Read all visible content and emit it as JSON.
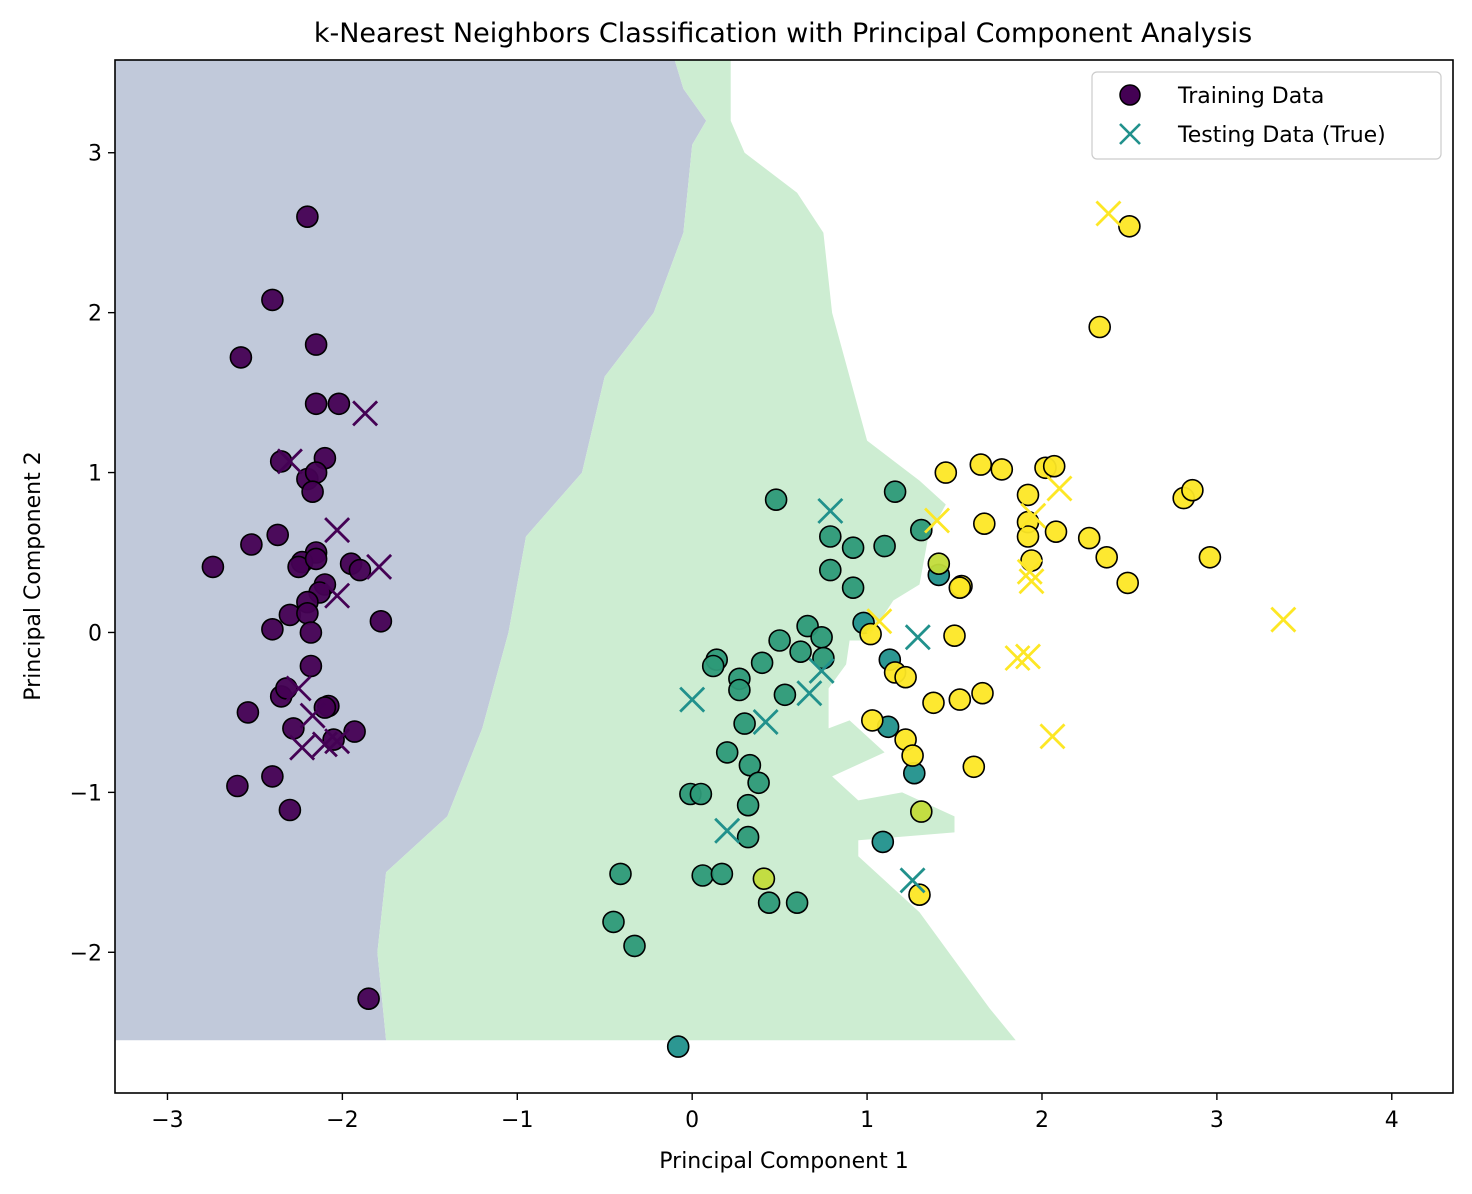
{
  "chart_data": {
    "type": "scatter",
    "title": "k-Nearest Neighbors Classification with Principal Component Analysis",
    "xlabel": "Principal Component 1",
    "ylabel": "Principal Component 2",
    "xlim": [
      -3.3,
      4.35
    ],
    "ylim": [
      -2.88,
      3.58
    ],
    "xticks": [
      -3,
      -2,
      -1,
      0,
      1,
      2,
      3,
      4
    ],
    "yticks": [
      -2,
      -1,
      0,
      1,
      2,
      3
    ],
    "grid": false,
    "legend_position": "top-right",
    "legend": [
      "Training Data",
      "Testing Data (True)"
    ],
    "colors": {
      "class0": "#440154",
      "class1": "#21918c",
      "class1_train": "#2d9a78",
      "class2": "#fde725",
      "class_mid": "#c2dc3a",
      "region0": "#c1c9da",
      "region1": "#cdedd2",
      "region2": "#ffffff"
    },
    "decision_regions": [
      {
        "class": 0,
        "boundary": [
          [
            -3.3,
            3.58
          ],
          [
            -0.1,
            3.58
          ],
          [
            -0.05,
            3.4
          ],
          [
            0.08,
            3.2
          ],
          [
            0.0,
            3.05
          ],
          [
            -0.05,
            2.5
          ],
          [
            -0.22,
            2.0
          ],
          [
            -0.5,
            1.6
          ],
          [
            -0.63,
            1.0
          ],
          [
            -0.95,
            0.6
          ],
          [
            -1.05,
            0.0
          ],
          [
            -1.2,
            -0.6
          ],
          [
            -1.4,
            -1.15
          ],
          [
            -1.75,
            -1.5
          ],
          [
            -1.8,
            -2.0
          ],
          [
            -1.75,
            -2.55
          ],
          [
            -3.3,
            -2.55
          ]
        ]
      },
      {
        "class": 1,
        "boundary": [
          [
            -0.1,
            3.58
          ],
          [
            0.22,
            3.58
          ],
          [
            0.22,
            3.2
          ],
          [
            0.3,
            3.0
          ],
          [
            0.6,
            2.75
          ],
          [
            0.75,
            2.5
          ],
          [
            0.8,
            2.0
          ],
          [
            0.95,
            1.4
          ],
          [
            1.0,
            1.2
          ],
          [
            1.3,
            0.95
          ],
          [
            1.45,
            0.8
          ],
          [
            1.35,
            0.6
          ],
          [
            1.3,
            0.3
          ],
          [
            1.15,
            0.2
          ],
          [
            1.0,
            -0.05
          ],
          [
            0.9,
            -0.05
          ],
          [
            0.88,
            -0.2
          ],
          [
            0.78,
            -0.35
          ],
          [
            0.78,
            -0.6
          ],
          [
            0.9,
            -0.55
          ],
          [
            1.1,
            -0.75
          ],
          [
            0.8,
            -0.9
          ],
          [
            0.95,
            -1.05
          ],
          [
            1.2,
            -1.0
          ],
          [
            1.5,
            -1.15
          ],
          [
            1.5,
            -1.25
          ],
          [
            0.95,
            -1.3
          ],
          [
            0.95,
            -1.4
          ],
          [
            1.3,
            -1.75
          ],
          [
            1.7,
            -2.35
          ],
          [
            1.85,
            -2.55
          ],
          [
            -1.75,
            -2.55
          ],
          [
            -1.8,
            -2.0
          ],
          [
            -1.75,
            -1.5
          ],
          [
            -1.4,
            -1.15
          ],
          [
            -1.2,
            -0.6
          ],
          [
            -1.05,
            0.0
          ],
          [
            -0.95,
            0.6
          ],
          [
            -0.63,
            1.0
          ],
          [
            -0.5,
            1.6
          ],
          [
            -0.22,
            2.0
          ],
          [
            -0.05,
            2.5
          ],
          [
            0.0,
            3.05
          ],
          [
            0.08,
            3.2
          ],
          [
            -0.05,
            3.4
          ]
        ]
      }
    ],
    "series": [
      {
        "name": "Training Data",
        "marker": "circle",
        "class0": [
          [
            -2.2,
            2.6
          ],
          [
            -2.4,
            2.08
          ],
          [
            -2.58,
            1.72
          ],
          [
            -2.15,
            1.8
          ],
          [
            -2.15,
            1.43
          ],
          [
            -2.02,
            1.43
          ],
          [
            -2.35,
            1.07
          ],
          [
            -2.1,
            1.09
          ],
          [
            -2.2,
            0.96
          ],
          [
            -2.15,
            1.0
          ],
          [
            -2.17,
            0.88
          ],
          [
            -2.37,
            0.61
          ],
          [
            -2.52,
            0.55
          ],
          [
            -2.15,
            0.5
          ],
          [
            -2.23,
            0.44
          ],
          [
            -2.25,
            0.41
          ],
          [
            -2.15,
            0.46
          ],
          [
            -2.74,
            0.41
          ],
          [
            -1.95,
            0.43
          ],
          [
            -1.9,
            0.39
          ],
          [
            -2.1,
            0.3
          ],
          [
            -2.13,
            0.25
          ],
          [
            -2.2,
            0.19
          ],
          [
            -2.3,
            0.11
          ],
          [
            -2.2,
            0.12
          ],
          [
            -2.4,
            0.02
          ],
          [
            -2.18,
            0.0
          ],
          [
            -1.78,
            0.07
          ],
          [
            -2.18,
            -0.21
          ],
          [
            -2.35,
            -0.4
          ],
          [
            -2.32,
            -0.35
          ],
          [
            -2.08,
            -0.46
          ],
          [
            -2.1,
            -0.47
          ],
          [
            -2.54,
            -0.5
          ],
          [
            -2.28,
            -0.6
          ],
          [
            -1.93,
            -0.62
          ],
          [
            -2.05,
            -0.67
          ],
          [
            -2.6,
            -0.96
          ],
          [
            -2.4,
            -0.9
          ],
          [
            -2.3,
            -1.11
          ],
          [
            -1.85,
            -2.29
          ]
        ],
        "class1": [
          [
            0.48,
            0.83
          ],
          [
            1.16,
            0.88
          ],
          [
            0.79,
            0.6
          ],
          [
            0.92,
            0.53
          ],
          [
            1.1,
            0.54
          ],
          [
            1.31,
            0.64
          ],
          [
            0.79,
            0.39
          ],
          [
            0.92,
            0.28
          ],
          [
            0.66,
            0.04
          ],
          [
            0.74,
            -0.03
          ],
          [
            0.5,
            -0.05
          ],
          [
            0.62,
            -0.12
          ],
          [
            0.75,
            -0.16
          ],
          [
            0.14,
            -0.17
          ],
          [
            0.12,
            -0.21
          ],
          [
            0.4,
            -0.19
          ],
          [
            0.27,
            -0.29
          ],
          [
            0.27,
            -0.36
          ],
          [
            0.53,
            -0.39
          ],
          [
            0.3,
            -0.57
          ],
          [
            0.2,
            -0.75
          ],
          [
            0.33,
            -0.83
          ],
          [
            0.38,
            -0.94
          ],
          [
            0.32,
            -1.08
          ],
          [
            -0.01,
            -1.01
          ],
          [
            0.05,
            -1.01
          ],
          [
            0.32,
            -1.28
          ],
          [
            -0.41,
            -1.51
          ],
          [
            0.06,
            -1.52
          ],
          [
            0.17,
            -1.51
          ],
          [
            0.44,
            -1.69
          ],
          [
            0.6,
            -1.69
          ],
          [
            -0.45,
            -1.81
          ],
          [
            -0.33,
            -1.96
          ]
        ],
        "class1_teal": [
          [
            0.98,
            0.06
          ],
          [
            1.13,
            -0.17
          ],
          [
            1.41,
            0.36
          ],
          [
            1.12,
            -0.59
          ],
          [
            1.27,
            -0.88
          ],
          [
            1.09,
            -1.31
          ],
          [
            -0.08,
            -2.59
          ]
        ],
        "class_mid": [
          [
            1.41,
            0.43
          ],
          [
            0.41,
            -1.54
          ],
          [
            1.31,
            -1.12
          ]
        ],
        "class2": [
          [
            2.5,
            2.54
          ],
          [
            2.33,
            1.91
          ],
          [
            1.45,
            1.0
          ],
          [
            1.65,
            1.05
          ],
          [
            1.77,
            1.02
          ],
          [
            2.02,
            1.03
          ],
          [
            2.07,
            1.04
          ],
          [
            1.92,
            0.86
          ],
          [
            2.81,
            0.84
          ],
          [
            2.86,
            0.89
          ],
          [
            1.92,
            0.69
          ],
          [
            1.67,
            0.68
          ],
          [
            1.92,
            0.6
          ],
          [
            2.08,
            0.63
          ],
          [
            2.27,
            0.59
          ],
          [
            2.37,
            0.47
          ],
          [
            2.96,
            0.47
          ],
          [
            1.94,
            0.45
          ],
          [
            1.54,
            0.29
          ],
          [
            1.53,
            0.28
          ],
          [
            2.49,
            0.31
          ],
          [
            1.02,
            -0.01
          ],
          [
            1.5,
            -0.02
          ],
          [
            1.16,
            -0.25
          ],
          [
            1.22,
            -0.28
          ],
          [
            1.38,
            -0.44
          ],
          [
            1.53,
            -0.42
          ],
          [
            1.66,
            -0.38
          ],
          [
            1.03,
            -0.55
          ],
          [
            1.22,
            -0.67
          ],
          [
            1.26,
            -0.77
          ],
          [
            1.61,
            -0.84
          ],
          [
            1.3,
            -1.64
          ]
        ]
      },
      {
        "name": "Testing Data (True)",
        "marker": "x",
        "class0": [
          [
            -1.87,
            1.37
          ],
          [
            -2.3,
            1.07
          ],
          [
            -2.03,
            0.64
          ],
          [
            -1.79,
            0.41
          ],
          [
            -2.03,
            0.23
          ],
          [
            -2.25,
            -0.35
          ],
          [
            -2.17,
            -0.52
          ],
          [
            -2.23,
            -0.72
          ],
          [
            -2.1,
            -0.7
          ],
          [
            -2.03,
            -0.68
          ]
        ],
        "class1": [
          [
            0.79,
            0.76
          ],
          [
            1.29,
            -0.03
          ],
          [
            0.74,
            -0.24
          ],
          [
            0.67,
            -0.38
          ],
          [
            0.0,
            -0.42
          ],
          [
            0.42,
            -0.56
          ],
          [
            0.2,
            -1.24
          ],
          [
            1.26,
            -1.55
          ]
        ],
        "class2": [
          [
            2.38,
            2.62
          ],
          [
            1.4,
            0.7
          ],
          [
            2.1,
            0.9
          ],
          [
            1.95,
            0.73
          ],
          [
            1.07,
            0.07
          ],
          [
            1.93,
            0.38
          ],
          [
            1.94,
            0.32
          ],
          [
            3.38,
            0.08
          ],
          [
            1.86,
            -0.16
          ],
          [
            1.92,
            -0.15
          ],
          [
            2.06,
            -0.65
          ]
        ]
      }
    ]
  }
}
